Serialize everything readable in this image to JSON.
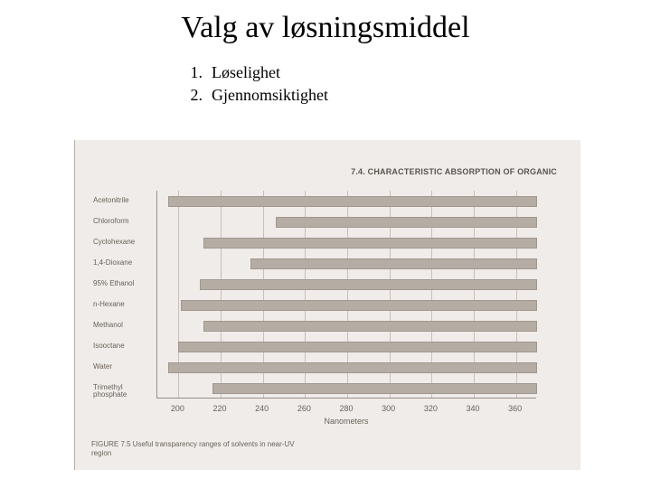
{
  "title": "Valg av løsningsmiddel",
  "list": [
    {
      "n": "1.",
      "text": "Løselighet"
    },
    {
      "n": "2.",
      "text": "Gjennomsiktighet"
    }
  ],
  "figure": {
    "caption_top": "7.4. CHARACTERISTIC ABSORPTION OF ORGANIC",
    "caption_bottom_line1": "FIGURE 7.5 Useful transparency ranges of solvents in near-UV",
    "caption_bottom_line2": "region",
    "axis_label": "Nanometers",
    "background": "#f0ece9",
    "bar_color": "#b5aca3",
    "grid_color": "#c8c0b8",
    "text_color": "#6a625a",
    "xlim": [
      190,
      370
    ],
    "ticks": [
      200,
      220,
      240,
      260,
      280,
      300,
      320,
      340,
      360
    ],
    "rows": [
      {
        "label": "Acetonitrile",
        "start": 195,
        "end": 370
      },
      {
        "label": "Chloroform",
        "start": 246,
        "end": 370
      },
      {
        "label": "Cyclohexane",
        "start": 212,
        "end": 370
      },
      {
        "label": "1,4-Dioxane",
        "start": 234,
        "end": 370
      },
      {
        "label": "95% Ethanol",
        "start": 210,
        "end": 370
      },
      {
        "label": "n-Hexane",
        "start": 201,
        "end": 370
      },
      {
        "label": "Methanol",
        "start": 212,
        "end": 370
      },
      {
        "label": "Isooctane",
        "start": 200,
        "end": 370
      },
      {
        "label": "Water",
        "start": 195,
        "end": 370
      },
      {
        "label": "Trimethyl phosphate",
        "start": 216,
        "end": 370
      }
    ]
  }
}
